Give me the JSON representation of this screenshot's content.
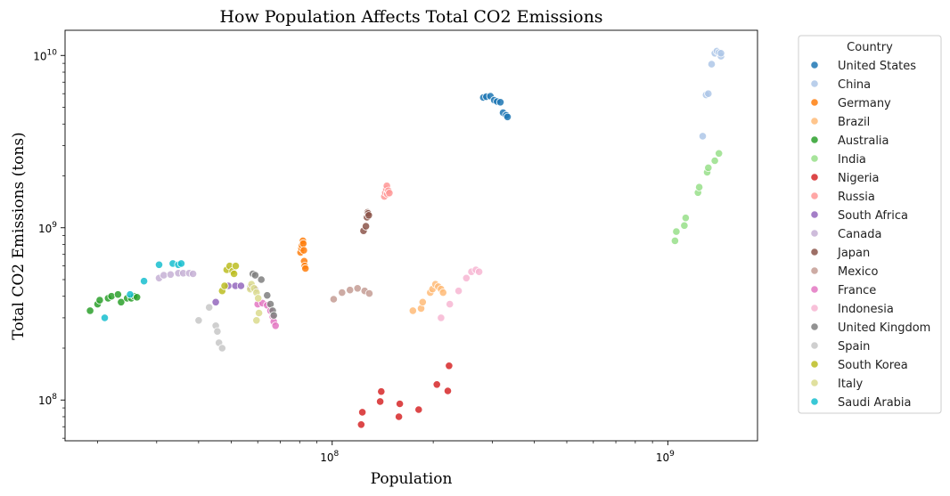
{
  "chart_data": {
    "type": "scatter",
    "title": "How Population Affects Total CO2 Emissions",
    "xlabel": "Population",
    "ylabel": "Total CO2 Emissions (tons)",
    "xscale": "log",
    "yscale": "log",
    "xlim": [
      16000000,
      1850000000
    ],
    "ylim": [
      58000000,
      14000000000
    ],
    "grid": false,
    "legend_title": "Country",
    "legend_position": "outside right",
    "x_ticks": [
      {
        "value": 100000000,
        "base": "10",
        "exp": "8"
      },
      {
        "value": 1000000000,
        "base": "10",
        "exp": "9"
      }
    ],
    "y_ticks": [
      {
        "value": 100000000,
        "base": "10",
        "exp": "8"
      },
      {
        "value": 1000000000,
        "base": "10",
        "exp": "9"
      },
      {
        "value": 10000000000,
        "base": "10",
        "exp": "10"
      }
    ],
    "series": [
      {
        "name": "United States",
        "color": "#1f77b4",
        "points": [
          [
            282000000,
            5700000000
          ],
          [
            288000000,
            5760000000
          ],
          [
            296000000,
            5800000000
          ],
          [
            304000000,
            5500000000
          ],
          [
            310000000,
            5400000000
          ],
          [
            317000000,
            5350000000
          ],
          [
            323000000,
            4650000000
          ],
          [
            330000000,
            4500000000
          ],
          [
            333000000,
            4400000000
          ]
        ]
      },
      {
        "name": "China",
        "color": "#aec7e8",
        "points": [
          [
            1270000000,
            3400000000
          ],
          [
            1300000000,
            5900000000
          ],
          [
            1320000000,
            6000000000
          ],
          [
            1350000000,
            8900000000
          ],
          [
            1380000000,
            10300000000
          ],
          [
            1400000000,
            10600000000
          ],
          [
            1420000000,
            10400000000
          ],
          [
            1440000000,
            9900000000
          ],
          [
            1440000000,
            10300000000
          ]
        ]
      },
      {
        "name": "Germany",
        "color": "#ff7f0e",
        "points": [
          [
            80500000,
            720000000
          ],
          [
            81000000,
            760000000
          ],
          [
            81300000,
            790000000
          ],
          [
            81800000,
            840000000
          ],
          [
            82000000,
            810000000
          ],
          [
            82300000,
            740000000
          ],
          [
            82500000,
            640000000
          ],
          [
            82800000,
            600000000
          ],
          [
            83200000,
            580000000
          ]
        ]
      },
      {
        "name": "Brazil",
        "color": "#ffbb78",
        "points": [
          [
            174000000,
            330000000
          ],
          [
            184000000,
            340000000
          ],
          [
            186000000,
            370000000
          ],
          [
            196000000,
            420000000
          ],
          [
            199000000,
            440000000
          ],
          [
            203000000,
            470000000
          ],
          [
            207000000,
            455000000
          ],
          [
            211000000,
            440000000
          ],
          [
            214000000,
            420000000
          ]
        ]
      },
      {
        "name": "Australia",
        "color": "#2ca02c",
        "points": [
          [
            19000000,
            330000000
          ],
          [
            20000000,
            360000000
          ],
          [
            20300000,
            380000000
          ],
          [
            21500000,
            390000000
          ],
          [
            22000000,
            400000000
          ],
          [
            23000000,
            410000000
          ],
          [
            23500000,
            370000000
          ],
          [
            24500000,
            390000000
          ],
          [
            25200000,
            390000000
          ],
          [
            25700000,
            400000000
          ],
          [
            26200000,
            395000000
          ]
        ]
      },
      {
        "name": "India",
        "color": "#98df8a",
        "points": [
          [
            1050000000,
            840000000
          ],
          [
            1060000000,
            950000000
          ],
          [
            1120000000,
            1030000000
          ],
          [
            1130000000,
            1140000000
          ],
          [
            1230000000,
            1600000000
          ],
          [
            1240000000,
            1720000000
          ],
          [
            1310000000,
            2100000000
          ],
          [
            1320000000,
            2230000000
          ],
          [
            1380000000,
            2450000000
          ],
          [
            1420000000,
            2700000000
          ]
        ]
      },
      {
        "name": "Nigeria",
        "color": "#d62728",
        "points": [
          [
            122000000,
            72000000
          ],
          [
            123000000,
            85000000
          ],
          [
            139000000,
            98000000
          ],
          [
            140000000,
            112000000
          ],
          [
            158000000,
            80000000
          ],
          [
            159000000,
            95000000
          ],
          [
            181000000,
            88000000
          ],
          [
            205000000,
            123000000
          ],
          [
            221000000,
            113000000
          ],
          [
            223000000,
            158000000
          ]
        ]
      },
      {
        "name": "Russia",
        "color": "#ff9896",
        "points": [
          [
            143000000,
            1520000000
          ],
          [
            144000000,
            1600000000
          ],
          [
            145000000,
            1680000000
          ],
          [
            145500000,
            1750000000
          ],
          [
            146000000,
            1570000000
          ],
          [
            147000000,
            1640000000
          ],
          [
            148000000,
            1590000000
          ]
        ]
      },
      {
        "name": "South Africa",
        "color": "#9467bd",
        "points": [
          [
            45000000,
            370000000
          ],
          [
            49000000,
            460000000
          ],
          [
            51500000,
            460000000
          ],
          [
            53500000,
            460000000
          ],
          [
            57000000,
            450000000
          ],
          [
            59000000,
            440000000
          ]
        ]
      },
      {
        "name": "Canada",
        "color": "#c5b0d5",
        "points": [
          [
            30500000,
            510000000
          ],
          [
            31500000,
            530000000
          ],
          [
            33000000,
            535000000
          ],
          [
            34800000,
            545000000
          ],
          [
            36000000,
            545000000
          ],
          [
            37500000,
            545000000
          ],
          [
            38500000,
            540000000
          ]
        ]
      },
      {
        "name": "Japan",
        "color": "#8c564b",
        "points": [
          [
            124000000,
            960000000
          ],
          [
            126000000,
            1020000000
          ],
          [
            127000000,
            1150000000
          ],
          [
            127500000,
            1230000000
          ],
          [
            128000000,
            1210000000
          ],
          [
            128500000,
            1180000000
          ]
        ]
      },
      {
        "name": "Mexico",
        "color": "#c49c94",
        "points": [
          [
            101000000,
            385000000
          ],
          [
            107000000,
            420000000
          ],
          [
            113000000,
            435000000
          ],
          [
            119000000,
            445000000
          ],
          [
            125000000,
            430000000
          ],
          [
            129000000,
            415000000
          ]
        ]
      },
      {
        "name": "France",
        "color": "#e377c2",
        "points": [
          [
            60000000,
            360000000
          ],
          [
            62000000,
            365000000
          ],
          [
            64000000,
            355000000
          ],
          [
            65500000,
            330000000
          ],
          [
            66500000,
            305000000
          ],
          [
            67000000,
            285000000
          ],
          [
            67800000,
            270000000
          ]
        ]
      },
      {
        "name": "Indonesia",
        "color": "#f7b6d2",
        "points": [
          [
            211000000,
            300000000
          ],
          [
            224000000,
            360000000
          ],
          [
            238000000,
            430000000
          ],
          [
            251000000,
            510000000
          ],
          [
            260000000,
            555000000
          ],
          [
            268000000,
            570000000
          ],
          [
            274000000,
            555000000
          ]
        ]
      },
      {
        "name": "United Kingdom",
        "color": "#7f7f7f",
        "points": [
          [
            58000000,
            540000000
          ],
          [
            59000000,
            530000000
          ],
          [
            61500000,
            500000000
          ],
          [
            64000000,
            405000000
          ],
          [
            65500000,
            360000000
          ],
          [
            66500000,
            330000000
          ],
          [
            67000000,
            310000000
          ]
        ]
      },
      {
        "name": "Spain",
        "color": "#c7c7c7",
        "points": [
          [
            40000000,
            290000000
          ],
          [
            43000000,
            345000000
          ],
          [
            45000000,
            270000000
          ],
          [
            45500000,
            250000000
          ],
          [
            46000000,
            215000000
          ],
          [
            47000000,
            200000000
          ]
        ]
      },
      {
        "name": "South Korea",
        "color": "#bcbd22",
        "points": [
          [
            47000000,
            430000000
          ],
          [
            47800000,
            460000000
          ],
          [
            48500000,
            570000000
          ],
          [
            49500000,
            600000000
          ],
          [
            50500000,
            560000000
          ],
          [
            51000000,
            540000000
          ],
          [
            51600000,
            600000000
          ]
        ]
      },
      {
        "name": "Italy",
        "color": "#dbdb8d",
        "points": [
          [
            57000000,
            440000000
          ],
          [
            57500000,
            470000000
          ],
          [
            58500000,
            445000000
          ],
          [
            59500000,
            420000000
          ],
          [
            60200000,
            390000000
          ],
          [
            60500000,
            320000000
          ],
          [
            59500000,
            290000000
          ]
        ]
      },
      {
        "name": "Saudi Arabia",
        "color": "#17becf",
        "points": [
          [
            21000000,
            300000000
          ],
          [
            25000000,
            410000000
          ],
          [
            27500000,
            490000000
          ],
          [
            30500000,
            610000000
          ],
          [
            33500000,
            620000000
          ],
          [
            34800000,
            610000000
          ],
          [
            35500000,
            620000000
          ]
        ]
      }
    ]
  }
}
